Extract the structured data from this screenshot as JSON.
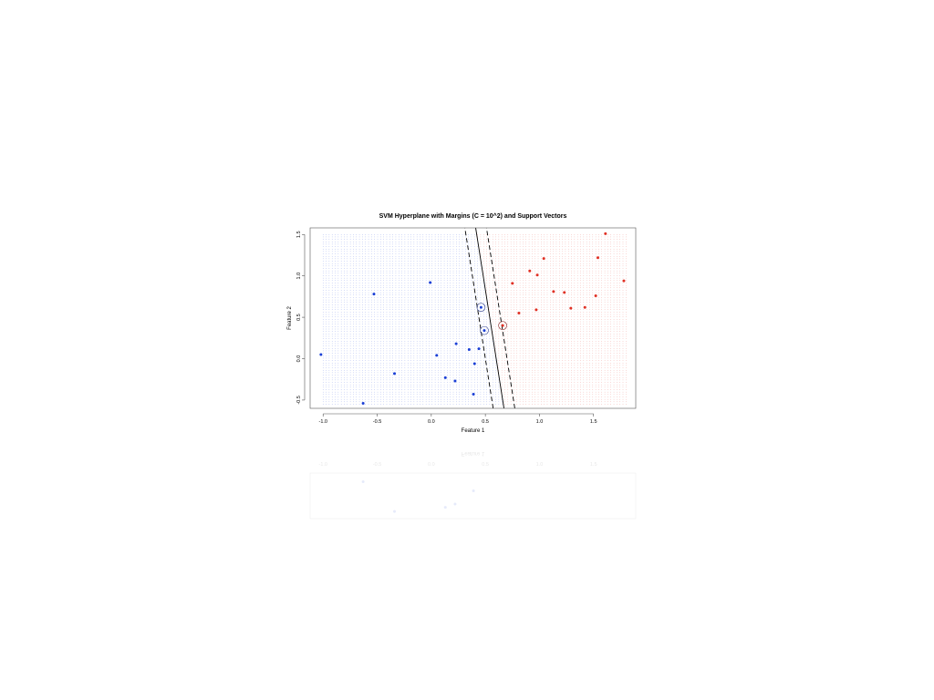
{
  "chart_data": {
    "type": "scatter",
    "title": "SVM Hyperplane with Margins (C = 10^2) and Support Vectors",
    "xlabel": "Feature 1",
    "ylabel": "Feature 2",
    "xlim": [
      -1.12,
      1.89
    ],
    "ylim": [
      -0.6,
      1.58
    ],
    "xticks": [
      -1.0,
      -0.5,
      0.0,
      0.5,
      1.0,
      1.5
    ],
    "yticks": [
      -0.5,
      0.0,
      0.5,
      1.0,
      1.5
    ],
    "xtick_labels": [
      "-1.0",
      "-0.5",
      "0.0",
      "0.5",
      "1.0",
      "1.5"
    ],
    "ytick_labels": [
      "-0.5",
      "0.0",
      "0.5",
      "1.0",
      "1.5"
    ],
    "grid_region": {
      "x": [
        -1.0,
        1.8
      ],
      "y": [
        -0.55,
        1.5
      ]
    },
    "colors": {
      "class_neg": "#1a3fd6",
      "class_pos": "#e03024",
      "line": "#000000",
      "sv_neg": "#2a3a8a",
      "sv_pos": "#8a2a2a"
    },
    "series": [
      {
        "values": [
          [
            -1.02,
            0.05
          ],
          [
            -0.53,
            0.78
          ],
          [
            -0.01,
            0.92
          ],
          [
            -0.34,
            -0.18
          ],
          [
            -0.63,
            -0.54
          ],
          [
            0.05,
            0.04
          ],
          [
            0.13,
            -0.23
          ],
          [
            0.22,
            -0.27
          ],
          [
            0.23,
            0.18
          ],
          [
            0.35,
            0.11
          ],
          [
            0.4,
            -0.06
          ],
          [
            0.44,
            0.12
          ],
          [
            0.39,
            -0.43
          ],
          [
            0.46,
            0.62
          ],
          [
            0.49,
            0.34
          ]
        ]
      },
      {
        "values": [
          [
            0.66,
            0.4
          ],
          [
            0.75,
            0.91
          ],
          [
            0.81,
            0.55
          ],
          [
            0.91,
            1.06
          ],
          [
            0.97,
            0.59
          ],
          [
            0.98,
            1.01
          ],
          [
            1.04,
            1.21
          ],
          [
            1.13,
            0.81
          ],
          [
            1.23,
            0.8
          ],
          [
            1.29,
            0.61
          ],
          [
            1.42,
            0.62
          ],
          [
            1.52,
            0.76
          ],
          [
            1.54,
            1.22
          ],
          [
            1.61,
            1.51
          ],
          [
            1.78,
            0.94
          ]
        ]
      }
    ],
    "support_vectors": [
      {
        "x": 0.46,
        "y": 0.62,
        "class": "neg"
      },
      {
        "x": 0.49,
        "y": 0.34,
        "class": "neg"
      },
      {
        "x": 0.66,
        "y": 0.4,
        "class": "pos"
      }
    ],
    "hyperplane": {
      "w": [
        1.0,
        0.12
      ],
      "b": -0.6,
      "margin_half_width": 0.1
    }
  }
}
